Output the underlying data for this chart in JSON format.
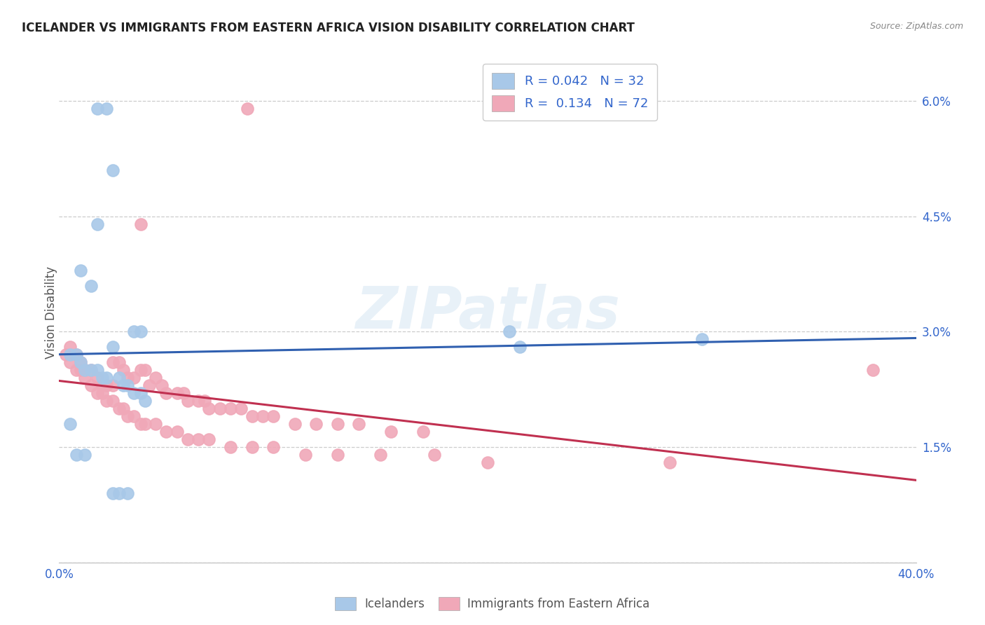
{
  "title": "ICELANDER VS IMMIGRANTS FROM EASTERN AFRICA VISION DISABILITY CORRELATION CHART",
  "source": "Source: ZipAtlas.com",
  "ylabel": "Vision Disability",
  "xlim": [
    0.0,
    0.4
  ],
  "ylim": [
    0.0,
    0.065
  ],
  "xticks": [
    0.0,
    0.1,
    0.2,
    0.3,
    0.4
  ],
  "yticks": [
    0.0,
    0.015,
    0.03,
    0.045,
    0.06
  ],
  "ytick_labels": [
    "",
    "1.5%",
    "3.0%",
    "4.5%",
    "6.0%"
  ],
  "xtick_labels": [
    "0.0%",
    "",
    "",
    "",
    "40.0%"
  ],
  "blue_color": "#a8c8e8",
  "pink_color": "#f0a8b8",
  "blue_line_color": "#3060b0",
  "pink_line_color": "#c03050",
  "blue_label": "Icelanders",
  "pink_label": "Immigrants from Eastern Africa",
  "watermark": "ZIPatlas",
  "legend_r1": "R = 0.042",
  "legend_n1": "N = 32",
  "legend_r2": "R =  0.134",
  "legend_n2": "N = 72",
  "icelanders_x": [
    0.018,
    0.022,
    0.025,
    0.018,
    0.01,
    0.015,
    0.035,
    0.038,
    0.005,
    0.008,
    0.01,
    0.012,
    0.015,
    0.018,
    0.02,
    0.022,
    0.025,
    0.028,
    0.03,
    0.032,
    0.035,
    0.038,
    0.04,
    0.21,
    0.215,
    0.005,
    0.008,
    0.012,
    0.3,
    0.025,
    0.028,
    0.032
  ],
  "icelanders_y": [
    0.059,
    0.059,
    0.051,
    0.044,
    0.038,
    0.036,
    0.03,
    0.03,
    0.027,
    0.027,
    0.026,
    0.025,
    0.025,
    0.025,
    0.024,
    0.024,
    0.028,
    0.024,
    0.023,
    0.023,
    0.022,
    0.022,
    0.021,
    0.03,
    0.028,
    0.018,
    0.014,
    0.014,
    0.029,
    0.009,
    0.009,
    0.009
  ],
  "eastern_africa_x": [
    0.088,
    0.038,
    0.005,
    0.008,
    0.01,
    0.012,
    0.015,
    0.018,
    0.02,
    0.022,
    0.025,
    0.025,
    0.028,
    0.03,
    0.032,
    0.035,
    0.038,
    0.04,
    0.042,
    0.045,
    0.048,
    0.05,
    0.055,
    0.058,
    0.06,
    0.065,
    0.068,
    0.07,
    0.075,
    0.08,
    0.085,
    0.09,
    0.095,
    0.1,
    0.11,
    0.12,
    0.13,
    0.14,
    0.155,
    0.17,
    0.003,
    0.005,
    0.008,
    0.01,
    0.012,
    0.015,
    0.018,
    0.02,
    0.022,
    0.025,
    0.028,
    0.03,
    0.032,
    0.035,
    0.038,
    0.04,
    0.045,
    0.05,
    0.055,
    0.06,
    0.065,
    0.07,
    0.08,
    0.09,
    0.1,
    0.115,
    0.13,
    0.15,
    0.175,
    0.2,
    0.38,
    0.285
  ],
  "eastern_africa_y": [
    0.059,
    0.044,
    0.028,
    0.027,
    0.026,
    0.025,
    0.025,
    0.024,
    0.023,
    0.023,
    0.023,
    0.026,
    0.026,
    0.025,
    0.024,
    0.024,
    0.025,
    0.025,
    0.023,
    0.024,
    0.023,
    0.022,
    0.022,
    0.022,
    0.021,
    0.021,
    0.021,
    0.02,
    0.02,
    0.02,
    0.02,
    0.019,
    0.019,
    0.019,
    0.018,
    0.018,
    0.018,
    0.018,
    0.017,
    0.017,
    0.027,
    0.026,
    0.025,
    0.025,
    0.024,
    0.023,
    0.022,
    0.022,
    0.021,
    0.021,
    0.02,
    0.02,
    0.019,
    0.019,
    0.018,
    0.018,
    0.018,
    0.017,
    0.017,
    0.016,
    0.016,
    0.016,
    0.015,
    0.015,
    0.015,
    0.014,
    0.014,
    0.014,
    0.014,
    0.013,
    0.025,
    0.013
  ]
}
